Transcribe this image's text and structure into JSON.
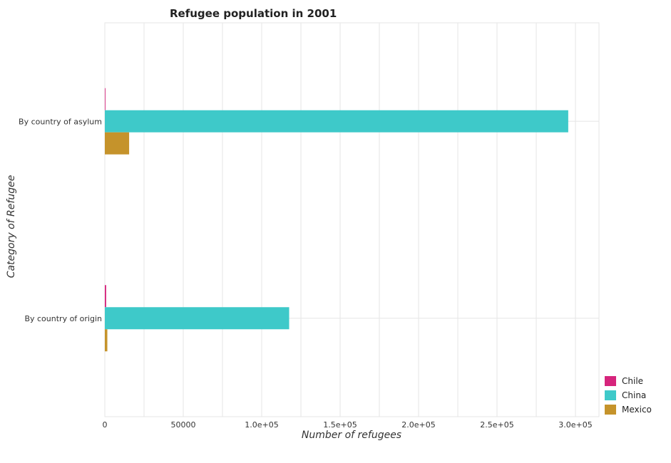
{
  "chart_data": {
    "type": "bar",
    "orientation": "horizontal",
    "title": "Refugee population in 2001",
    "xlabel": "Number of refugees",
    "ylabel": "Category of Refugee",
    "categories": [
      "By country of asylum",
      "By country of origin"
    ],
    "series": [
      {
        "name": "Chile",
        "color": "#d6247c",
        "values": [
          400,
          850
        ]
      },
      {
        "name": "China",
        "color": "#3ec9c9",
        "values": [
          295400,
          117500
        ]
      },
      {
        "name": "Mexico",
        "color": "#c5932b",
        "values": [
          15500,
          1600
        ]
      }
    ],
    "xlim": [
      0,
      315000
    ],
    "xticks": [
      0,
      50000,
      100000,
      150000,
      200000,
      250000,
      300000
    ],
    "xtick_labels": [
      "0",
      "50000",
      "1.0e+05",
      "1.5e+05",
      "2.0e+05",
      "2.5e+05",
      "3.0e+05"
    ],
    "grid": true,
    "legend_position": "bottom-right"
  }
}
